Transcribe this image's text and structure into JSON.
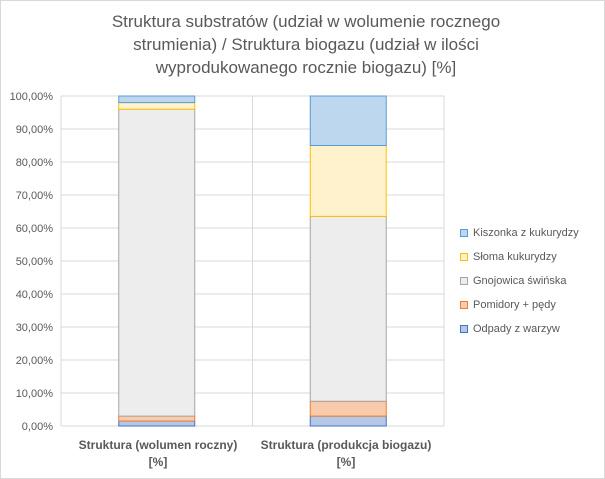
{
  "chart_data": {
    "type": "stacked-bar-100",
    "title_lines": [
      "Struktura substratów (udział w wolumenie  rocznego",
      "strumienia) / Struktura biogazu (udział w ilości",
      "wyprodukowanego rocznie biogazu) [%]"
    ],
    "categories": [
      [
        "Struktura (wolumen roczny)",
        "[%]"
      ],
      [
        "Struktura (produkcja biogazu)",
        "[%]"
      ]
    ],
    "yticks": [
      "0,00%",
      "10,00%",
      "20,00%",
      "30,00%",
      "40,00%",
      "50,00%",
      "60,00%",
      "70,00%",
      "80,00%",
      "90,00%",
      "100,00%"
    ],
    "ylim": [
      0,
      100
    ],
    "grid": true,
    "legend_position": "right",
    "series": [
      {
        "name": "Odpady z warzyw",
        "values": [
          1.5,
          3.0
        ],
        "fill": "#b4c7e7",
        "stroke": "#4472c4"
      },
      {
        "name": "Pomidory + pędy",
        "values": [
          1.5,
          4.5
        ],
        "fill": "#f8cbad",
        "stroke": "#ed7d31"
      },
      {
        "name": "Gnojowica świńska",
        "values": [
          93.0,
          56.0
        ],
        "fill": "#ededed",
        "stroke": "#a5a5a5"
      },
      {
        "name": "Słoma kukurydzy",
        "values": [
          2.0,
          21.5
        ],
        "fill": "#fff2cc",
        "stroke": "#ffc000"
      },
      {
        "name": "Kiszonka z kukurydzy",
        "values": [
          2.0,
          15.0
        ],
        "fill": "#bdd7ee",
        "stroke": "#5b9bd5"
      }
    ]
  }
}
